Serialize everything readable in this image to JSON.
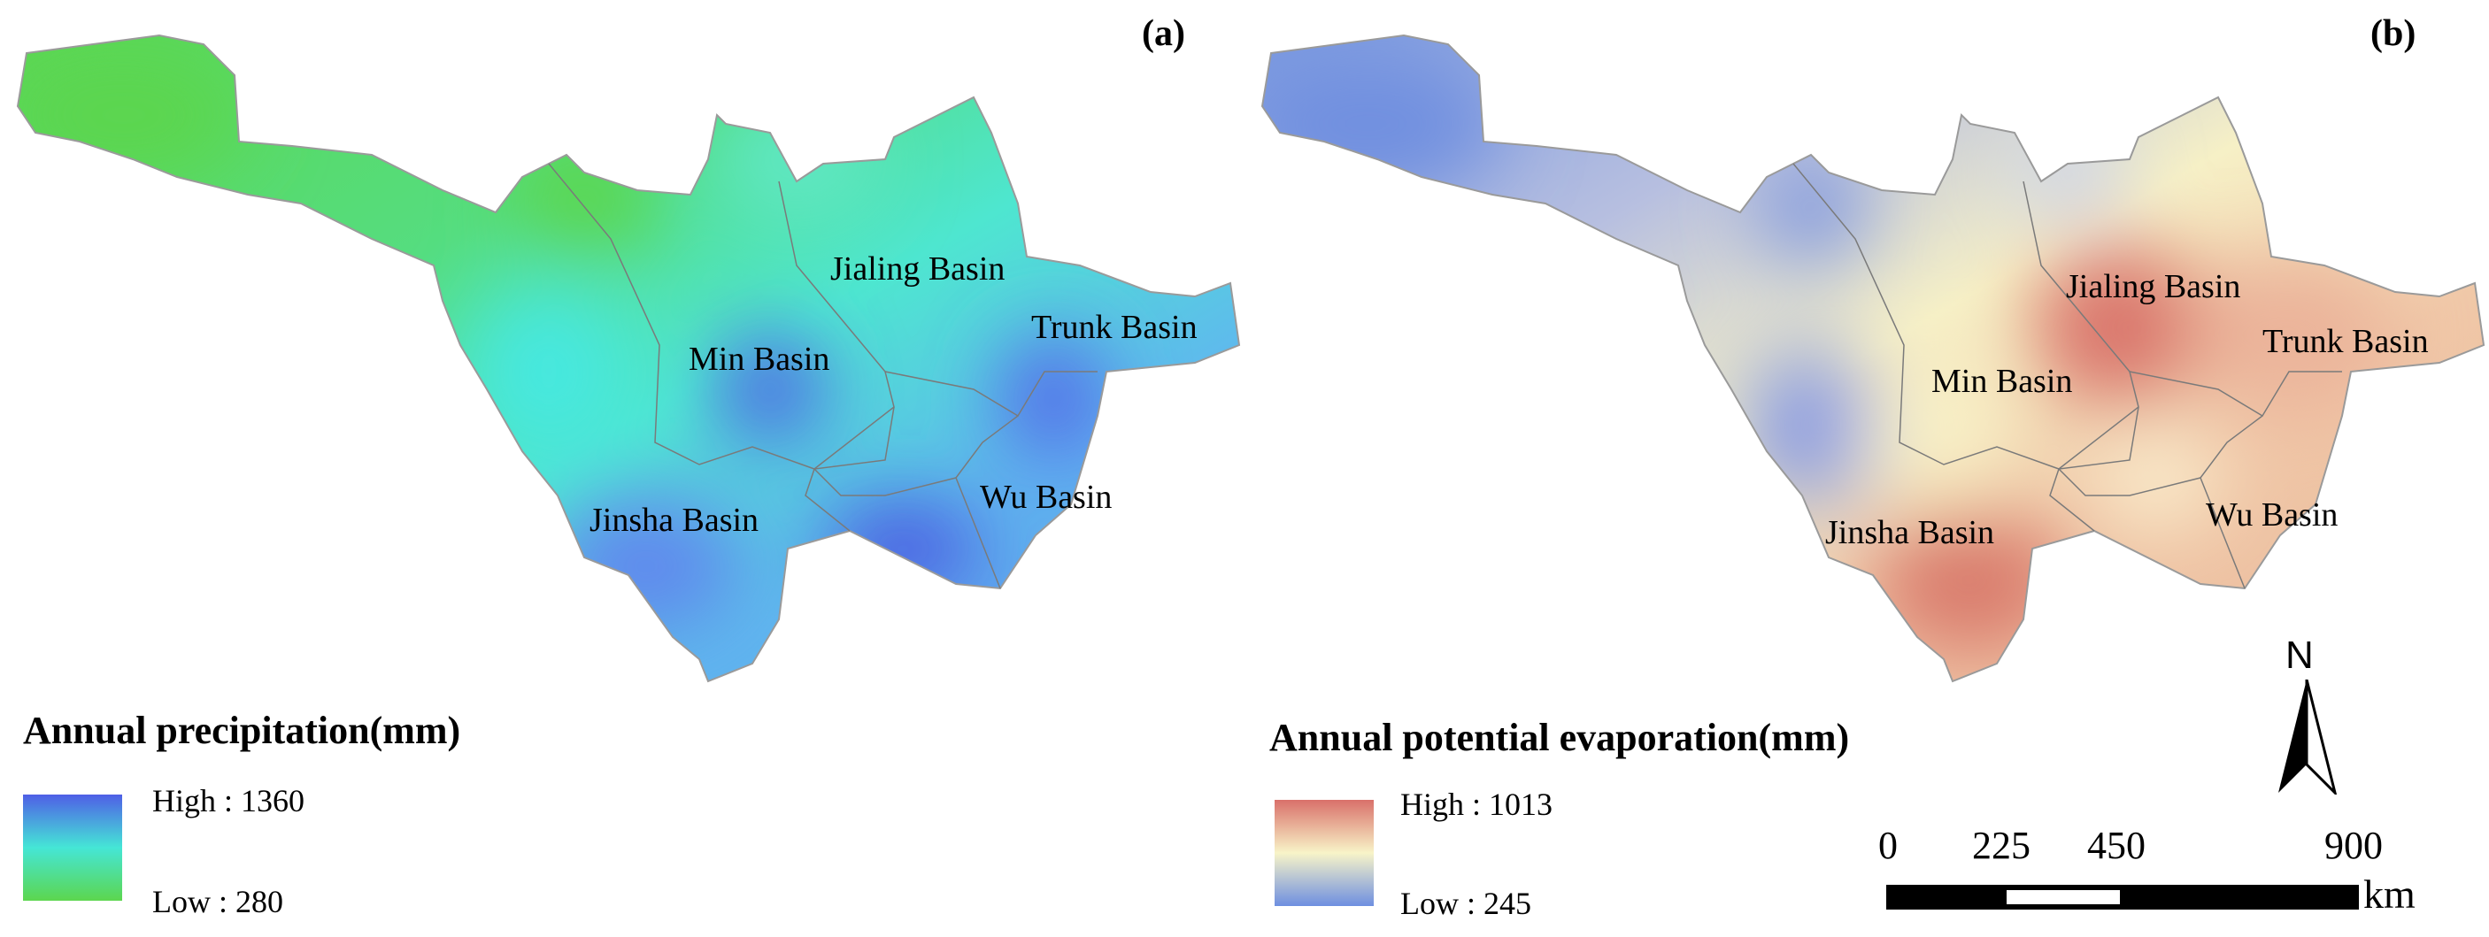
{
  "panel_a": {
    "label": "(a)",
    "legend": {
      "title": "Annual precipitation(mm)",
      "high_label": "High : 1360",
      "low_label": "Low : 280",
      "ramp_colors": [
        "#4f5fe6",
        "#45e6d6",
        "#5cd64e"
      ]
    },
    "basins": [
      "Jialing Basin",
      "Trunk Basin",
      "Min Basin",
      "Wu Basin",
      "Jinsha Basin"
    ]
  },
  "panel_b": {
    "label": "(b)",
    "legend": {
      "title": "Annual potential evaporation(mm)",
      "high_label": "High : 1013",
      "low_label": "Low : 245",
      "ramp_colors": [
        "#d9706a",
        "#f8f4c8",
        "#6e8fe0"
      ]
    },
    "basins": [
      "Jialing Basin",
      "Trunk Basin",
      "Min Basin",
      "Wu Basin",
      "Jinsha Basin"
    ]
  },
  "scale_bar": {
    "ticks": [
      "0",
      "225",
      "450",
      "900"
    ],
    "unit": "km"
  },
  "north_arrow": {
    "letter": "N"
  }
}
